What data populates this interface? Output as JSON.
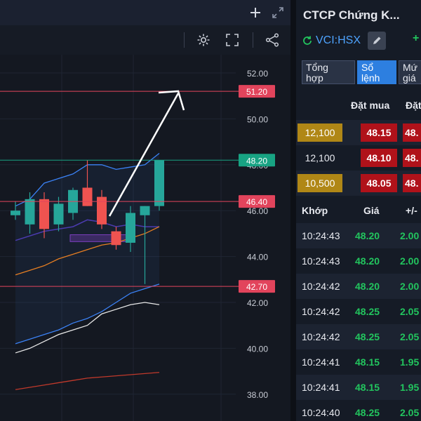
{
  "chart": {
    "y_ticks": [
      "52.00",
      "50.00",
      "48.00",
      "46.00",
      "44.00",
      "42.00",
      "40.00",
      "38.00"
    ],
    "price_lines": [
      {
        "price": 51.2,
        "label": "51.20",
        "color": "#e2445c"
      },
      {
        "price": 48.2,
        "label": "48.20",
        "color": "#18a383"
      },
      {
        "price": 46.4,
        "label": "46.40",
        "color": "#e2445c"
      },
      {
        "price": 42.7,
        "label": "42.70",
        "color": "#e2445c"
      }
    ],
    "colors": {
      "up": "#26a69a",
      "down": "#ef5350",
      "bollinger": "#3b82f6",
      "ma_orange": "#e67e22",
      "ma_white": "#e8e8e8",
      "ma_red": "#c0392b",
      "box": "#7b3fbf"
    },
    "icons": [
      "plus-icon",
      "fullscreen-arrows-icon",
      "gear-icon",
      "fullscreen-icon",
      "share-icon"
    ]
  },
  "company_name": "CTCP Chứng K...",
  "ticker": "VCI:HSX",
  "change_peek": "+",
  "tabs": [
    {
      "label": "Tổng\nhợp",
      "active": false
    },
    {
      "label": "Sổ\nlệnh",
      "active": true
    },
    {
      "label": "Mứ\ngiá",
      "active": false
    }
  ],
  "orderbook": {
    "header_bid": "Đặt mua",
    "header_ask": "Đặt",
    "rows": [
      {
        "vol": "12,100",
        "price": "48.15",
        "price2": "48.",
        "highlight": true
      },
      {
        "vol": "12,100",
        "price": "48.10",
        "price2": "48.",
        "highlight": false
      },
      {
        "vol": "10,500",
        "price": "48.05",
        "price2": "48.",
        "highlight": true
      }
    ]
  },
  "trades": {
    "header_time": "Khớp",
    "header_price": "Giá",
    "header_change": "+/-",
    "rows": [
      {
        "time": "10:24:43",
        "price": "48.20",
        "change": "2.00"
      },
      {
        "time": "10:24:43",
        "price": "48.20",
        "change": "2.00"
      },
      {
        "time": "10:24:42",
        "price": "48.20",
        "change": "2.00"
      },
      {
        "time": "10:24:42",
        "price": "48.25",
        "change": "2.05"
      },
      {
        "time": "10:24:42",
        "price": "48.25",
        "change": "2.05"
      },
      {
        "time": "10:24:41",
        "price": "48.15",
        "change": "1.95"
      },
      {
        "time": "10:24:41",
        "price": "48.15",
        "change": "1.95"
      },
      {
        "time": "10:24:40",
        "price": "48.25",
        "change": "2.05"
      }
    ]
  },
  "chart_data": {
    "type": "candlestick",
    "ylim": [
      37.5,
      52.5
    ],
    "candles": [
      {
        "open": 45.8,
        "high": 46.4,
        "low": 45.6,
        "close": 46.0
      },
      {
        "open": 45.4,
        "high": 46.8,
        "low": 45.0,
        "close": 46.5
      },
      {
        "open": 46.5,
        "high": 46.8,
        "low": 44.8,
        "close": 45.2
      },
      {
        "open": 45.4,
        "high": 46.6,
        "low": 45.1,
        "close": 46.3
      },
      {
        "open": 45.9,
        "high": 47.0,
        "low": 45.6,
        "close": 46.9
      },
      {
        "open": 47.0,
        "high": 48.2,
        "low": 46.2,
        "close": 46.2
      },
      {
        "open": 46.6,
        "high": 46.9,
        "low": 45.2,
        "close": 45.4
      },
      {
        "open": 45.1,
        "high": 45.3,
        "low": 44.3,
        "close": 44.5
      },
      {
        "open": 44.6,
        "high": 46.2,
        "low": 44.2,
        "close": 45.9
      },
      {
        "open": 45.8,
        "high": 46.2,
        "low": 42.8,
        "close": 46.2
      },
      {
        "open": 46.2,
        "high": 48.2,
        "low": 46.0,
        "close": 48.2
      }
    ],
    "series": [
      {
        "values": [
          46.2,
          46.5,
          47.2,
          47.4,
          47.6,
          48.0,
          48.0,
          47.8,
          47.9,
          48.0,
          48.5
        ]
      },
      {
        "values": [
          44.7,
          44.9,
          45.1,
          45.2,
          45.3,
          45.6,
          45.5,
          45.3,
          45.4,
          45.3,
          45.3
        ]
      },
      {
        "values": [
          43.2,
          43.4,
          43.6,
          43.9,
          44.1,
          44.3,
          44.5,
          44.6,
          44.8,
          45.0,
          45.3
        ]
      },
      {
        "values": [
          40.2,
          40.4,
          40.6,
          40.8,
          41.1,
          41.3,
          41.6,
          42.0,
          42.4,
          42.6,
          42.8
        ]
      },
      {
        "values": [
          39.8,
          40.0,
          40.3,
          40.6,
          40.8,
          41.0,
          41.5,
          41.7,
          41.9,
          42.0,
          41.9
        ]
      },
      {
        "values": [
          38.2,
          38.3,
          38.4,
          38.5,
          38.6,
          38.7,
          38.75,
          38.8,
          38.85,
          38.9,
          38.95
        ]
      }
    ]
  }
}
